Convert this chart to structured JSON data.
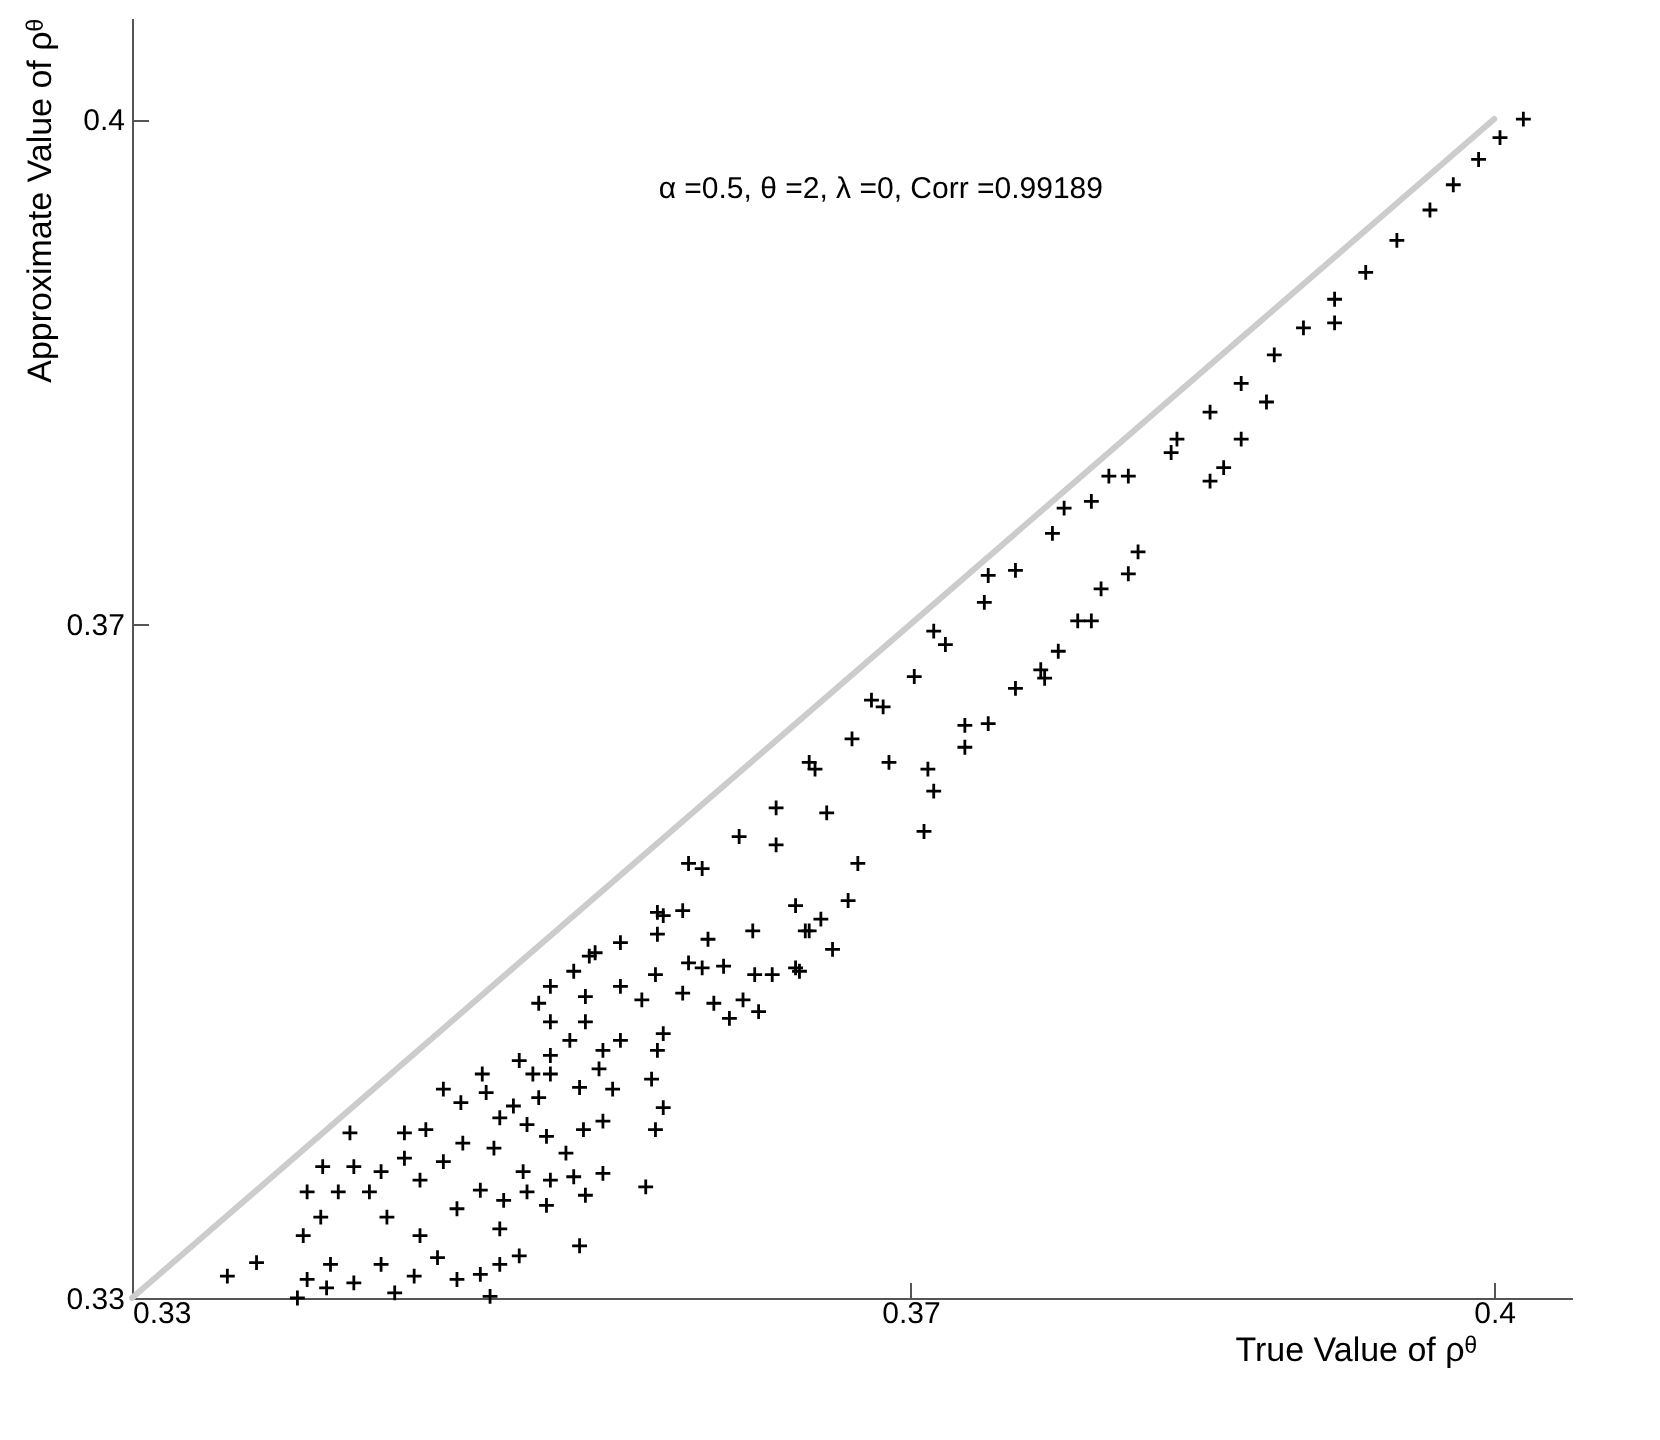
{
  "chart_data": {
    "type": "scatter",
    "xlabel": "True Value of ρᶿ",
    "ylabel": "Approximate Value of ρᶿ",
    "annotations": [
      "α =0.5, θ =2, λ =0, Corr =0.99189"
    ],
    "xlim": [
      0.33,
      0.404
    ],
    "ylim": [
      0.33,
      0.406
    ],
    "xticks": [
      0.33,
      0.37,
      0.4
    ],
    "yticks": [
      0.33,
      0.37,
      0.4
    ],
    "grid": false,
    "series": [
      {
        "type": "line",
        "color": "#cccccc",
        "x": [
          0.33,
          0.4
        ],
        "values": [
          0.33,
          0.4
        ]
      },
      {
        "color": "#000000",
        "marker": "cross",
        "x": [
          0.3349,
          0.3364,
          0.3385,
          0.339,
          0.34,
          0.3388,
          0.339,
          0.3398,
          0.3397,
          0.3406,
          0.3414,
          0.3412,
          0.3402,
          0.3414,
          0.3428,
          0.3435,
          0.3445,
          0.3457,
          0.3467,
          0.3479,
          0.3484,
          0.3489,
          0.3499,
          0.3489,
          0.353,
          0.3448,
          0.3431,
          0.3422,
          0.3428,
          0.344,
          0.3451,
          0.344,
          0.3448,
          0.346,
          0.3467,
          0.3479,
          0.347,
          0.346,
          0.3469,
          0.348,
          0.3482,
          0.3489,
          0.3486,
          0.3491,
          0.3503,
          0.3501,
          0.3515,
          0.3513,
          0.3533,
          0.3527,
          0.3542,
          0.3564,
          0.3523,
          0.3532,
          0.3542,
          0.3513,
          0.3503,
          0.3496,
          0.3509,
          0.3499,
          0.3506,
          0.3515,
          0.353,
          0.3547,
          0.354,
          0.3515,
          0.3525,
          0.3533,
          0.3542,
          0.3551,
          0.3567,
          0.3573,
          0.3569,
          0.357,
          0.3573,
          0.3515,
          0.3509,
          0.3515,
          0.3527,
          0.3533,
          0.3538,
          0.3551,
          0.3562,
          0.3551,
          0.3569,
          0.357,
          0.3573,
          0.3583,
          0.3596,
          0.3586,
          0.3593,
          0.3583,
          0.3599,
          0.3607,
          0.3622,
          0.3614,
          0.362,
          0.3629,
          0.3641,
          0.366,
          0.3648,
          0.3654,
          0.3668,
          0.3641,
          0.3619,
          0.3604,
          0.3535,
          0.357,
          0.3593,
          0.3612,
          0.3631,
          0.3651,
          0.367,
          0.3686,
          0.3702,
          0.3718,
          0.3738,
          0.3754,
          0.3773,
          0.3793,
          0.3812,
          0.3834,
          0.3643,
          0.3646,
          0.3673,
          0.3707,
          0.3712,
          0.3728,
          0.374,
          0.3769,
          0.3776,
          0.3793,
          0.3812,
          0.3817,
          0.3854,
          0.3861,
          0.3631,
          0.3657,
          0.3689,
          0.3709,
          0.3728,
          0.3754,
          0.3767,
          0.3786,
          0.3798,
          0.3586,
          0.3648,
          0.368,
          0.3712,
          0.374,
          0.3779,
          0.3802,
          0.3837,
          0.3854,
          0.387,
          0.3887,
          0.3902,
          0.3918,
          0.3934,
          0.395,
          0.3967,
          0.3979,
          0.3992,
          0.4003,
          0.4015,
          0.387,
          0.3883,
          0.3918
        ],
        "values": [
          0.3313,
          0.3321,
          0.33,
          0.3311,
          0.3306,
          0.3337,
          0.3363,
          0.3378,
          0.3348,
          0.3363,
          0.3378,
          0.3398,
          0.332,
          0.3309,
          0.332,
          0.3303,
          0.3313,
          0.3324,
          0.3311,
          0.3314,
          0.3301,
          0.332,
          0.3325,
          0.3341,
          0.3331,
          0.3337,
          0.3348,
          0.3363,
          0.3375,
          0.3398,
          0.34,
          0.3383,
          0.337,
          0.3381,
          0.3353,
          0.3364,
          0.3392,
          0.3424,
          0.3416,
          0.3433,
          0.3422,
          0.3407,
          0.3389,
          0.3358,
          0.3363,
          0.3375,
          0.337,
          0.3355,
          0.3361,
          0.3372,
          0.3374,
          0.3366,
          0.3386,
          0.34,
          0.3405,
          0.3396,
          0.3403,
          0.3414,
          0.3419,
          0.3441,
          0.3433,
          0.3433,
          0.3425,
          0.3424,
          0.3436,
          0.3444,
          0.3453,
          0.3464,
          0.3447,
          0.3453,
          0.343,
          0.3413,
          0.34,
          0.3447,
          0.3457,
          0.3464,
          0.3475,
          0.3485,
          0.3494,
          0.3479,
          0.3505,
          0.3485,
          0.3477,
          0.3511,
          0.3492,
          0.3516,
          0.3527,
          0.353,
          0.3513,
          0.3499,
          0.3496,
          0.3481,
          0.3475,
          0.3466,
          0.347,
          0.3477,
          0.3492,
          0.3492,
          0.3496,
          0.3507,
          0.3518,
          0.3525,
          0.3536,
          0.3533,
          0.3518,
          0.3497,
          0.3503,
          0.3529,
          0.3555,
          0.3574,
          0.3591,
          0.3614,
          0.3632,
          0.3651,
          0.3669,
          0.3688,
          0.3713,
          0.3732,
          0.3754,
          0.3773,
          0.3788,
          0.3802,
          0.3494,
          0.3518,
          0.3558,
          0.3577,
          0.3601,
          0.3627,
          0.3641,
          0.3668,
          0.3684,
          0.3702,
          0.373,
          0.3743,
          0.3785,
          0.3793,
          0.3569,
          0.3588,
          0.3618,
          0.3614,
          0.364,
          0.3662,
          0.3673,
          0.3702,
          0.3721,
          0.3558,
          0.3618,
          0.3655,
          0.3696,
          0.3729,
          0.3769,
          0.3788,
          0.381,
          0.3826,
          0.3843,
          0.386,
          0.3876,
          0.3893,
          0.3909,
          0.3928,
          0.3946,
          0.3961,
          0.3976,
          0.3989,
          0.4,
          0.381,
          0.3832,
          0.3879
        ]
      }
    ]
  }
}
